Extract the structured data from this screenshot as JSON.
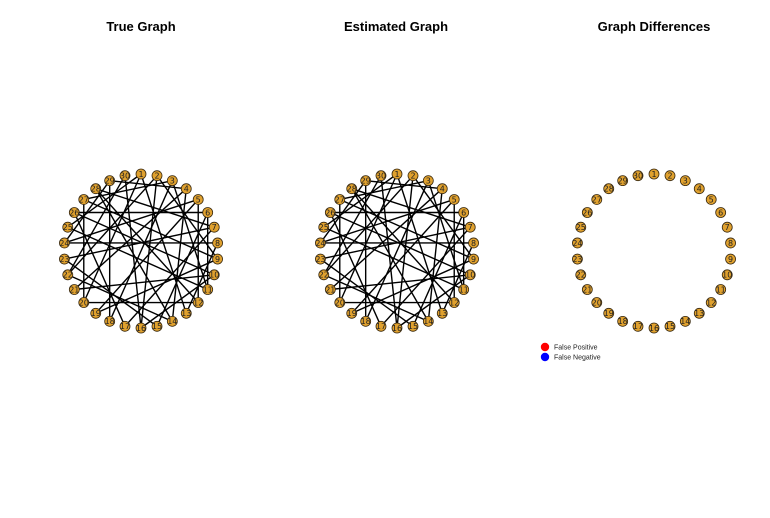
{
  "panels": [
    {
      "id": "true",
      "title": "True Graph"
    },
    {
      "id": "estimated",
      "title": "Estimated Graph"
    },
    {
      "id": "differences",
      "title": "Graph Differences"
    }
  ],
  "node_color": "#E0A12E",
  "node_stroke": "#3a2a10",
  "edge_color": "#000000",
  "node_count": 30,
  "edges": [
    [
      1,
      13
    ],
    [
      1,
      20
    ],
    [
      1,
      25
    ],
    [
      2,
      16
    ],
    [
      2,
      22
    ],
    [
      3,
      11
    ],
    [
      3,
      18
    ],
    [
      3,
      27
    ],
    [
      4,
      14
    ],
    [
      4,
      21
    ],
    [
      4,
      29
    ],
    [
      5,
      12
    ],
    [
      5,
      19
    ],
    [
      5,
      24
    ],
    [
      6,
      15
    ],
    [
      6,
      26
    ],
    [
      7,
      17
    ],
    [
      7,
      23
    ],
    [
      7,
      28
    ],
    [
      8,
      13
    ],
    [
      8,
      24
    ],
    [
      9,
      19
    ],
    [
      9,
      27
    ],
    [
      10,
      21
    ],
    [
      10,
      16
    ],
    [
      11,
      25
    ],
    [
      12,
      20
    ],
    [
      12,
      28
    ],
    [
      14,
      22
    ],
    [
      15,
      23
    ],
    [
      16,
      30
    ],
    [
      17,
      26
    ],
    [
      18,
      29
    ],
    [
      20,
      27
    ],
    [
      22,
      30
    ],
    [
      24,
      29
    ],
    [
      2,
      9
    ],
    [
      6,
      11
    ],
    [
      10,
      26
    ],
    [
      14,
      28
    ]
  ],
  "legend": [
    {
      "label": "False Positive",
      "color": "#FF0000"
    },
    {
      "label": "False Negative",
      "color": "#0000FF"
    }
  ]
}
